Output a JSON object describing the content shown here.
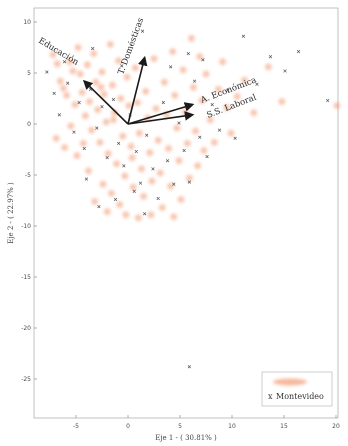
{
  "chart_data": {
    "type": "scatter",
    "xlabel": "Eje 1 - ( 30.81% )",
    "ylabel": "Eje 2 - ( 22.97% )",
    "xlim": [
      -10,
      20
    ],
    "ylim": [
      -30,
      10
    ],
    "xticks": [
      -5,
      0,
      5,
      10,
      15,
      20
    ],
    "yticks": [
      10,
      5,
      0,
      -5,
      -10,
      -15,
      -20,
      -25
    ],
    "grid": false,
    "legend_position": "bottom-right",
    "legend": [
      {
        "label": "",
        "marker": "blurred-circle",
        "color": "#f08a5d"
      },
      {
        "label": "Montevideo",
        "marker": "x",
        "color": "#555555"
      }
    ],
    "loadings": [
      {
        "label": "Educación",
        "x": -4.2,
        "y": 4.2
      },
      {
        "label": "T. Domésticas",
        "x": 1.6,
        "y": 6.5
      },
      {
        "label": "A. Económica",
        "x": 6.2,
        "y": 1.9
      },
      {
        "label": "S.S. Laboral",
        "x": 6.2,
        "y": 0.9
      }
    ],
    "series": [
      {
        "name": "",
        "marker": "circle",
        "color": "#f08a5d",
        "points": [
          [
            -7.2,
            6.8
          ],
          [
            -6.8,
            5.9
          ],
          [
            -6.5,
            4.2
          ],
          [
            -6.2,
            3.5
          ],
          [
            -5.9,
            2.8
          ],
          [
            -5.6,
            6.1
          ],
          [
            -5.3,
            5.2
          ],
          [
            -5.1,
            1.9
          ],
          [
            -4.8,
            7.5
          ],
          [
            -4.6,
            4.9
          ],
          [
            -4.4,
            3.1
          ],
          [
            -4.1,
            0.8
          ],
          [
            -3.9,
            5.8
          ],
          [
            -3.7,
            2.2
          ],
          [
            -3.5,
            -0.6
          ],
          [
            -3.3,
            6.9
          ],
          [
            -3.1,
            4.1
          ],
          [
            -2.9,
            1.4
          ],
          [
            -2.7,
            -1.8
          ],
          [
            -2.5,
            5.1
          ],
          [
            -2.3,
            2.9
          ],
          [
            -2.1,
            0.2
          ],
          [
            -1.9,
            -2.9
          ],
          [
            -1.7,
            7.8
          ],
          [
            -1.5,
            3.8
          ],
          [
            -1.3,
            1.1
          ],
          [
            -1.1,
            -3.9
          ],
          [
            -0.9,
            6.2
          ],
          [
            -0.7,
            2.5
          ],
          [
            -0.5,
            -1.2
          ],
          [
            -0.3,
            -5.1
          ],
          [
            -0.1,
            4.6
          ],
          [
            0.1,
            1.8
          ],
          [
            0.3,
            -2.2
          ],
          [
            0.5,
            -6.2
          ],
          [
            0.7,
            5.5
          ],
          [
            0.9,
            2.1
          ],
          [
            1.1,
            -0.9
          ],
          [
            1.3,
            -4.4
          ],
          [
            1.5,
            -7.1
          ],
          [
            1.7,
            3.2
          ],
          [
            1.9,
            0.6
          ],
          [
            2.1,
            -2.8
          ],
          [
            2.3,
            -5.6
          ],
          [
            2.5,
            6.4
          ],
          [
            2.7,
            1.5
          ],
          [
            2.9,
            -1.6
          ],
          [
            3.1,
            -4.8
          ],
          [
            3.3,
            -8.2
          ],
          [
            3.5,
            4.1
          ],
          [
            3.7,
            0.9
          ],
          [
            3.9,
            -2.4
          ],
          [
            4.1,
            -6.1
          ],
          [
            4.3,
            7.1
          ],
          [
            4.5,
            2.8
          ],
          [
            4.7,
            -0.4
          ],
          [
            4.9,
            -3.6
          ],
          [
            5.1,
            -7.4
          ],
          [
            5.3,
            5.3
          ],
          [
            5.5,
            1.2
          ],
          [
            5.7,
            -1.9
          ],
          [
            5.9,
            -5.3
          ],
          [
            6.1,
            8.4
          ],
          [
            6.3,
            3.6
          ],
          [
            6.5,
            -0.7
          ],
          [
            6.7,
            -4.1
          ],
          [
            6.9,
            6.6
          ],
          [
            7.1,
            2.3
          ],
          [
            7.3,
            -2.6
          ],
          [
            7.5,
            4.9
          ],
          [
            7.9,
            0.4
          ],
          [
            8.3,
            -1.8
          ],
          [
            8.7,
            3.4
          ],
          [
            9.1,
            6.1
          ],
          [
            9.5,
            1.6
          ],
          [
            9.9,
            -0.9
          ],
          [
            10.5,
            2.7
          ],
          [
            11.2,
            4.3
          ],
          [
            12.1,
            1.1
          ],
          [
            13.5,
            5.6
          ],
          [
            14.8,
            2.2
          ],
          [
            20.1,
            1.8
          ],
          [
            -6.9,
            -1.4
          ],
          [
            -6.1,
            -2.3
          ],
          [
            -5.5,
            -0.2
          ],
          [
            -4.9,
            -3.1
          ],
          [
            -4.3,
            -1.9
          ],
          [
            -3.8,
            -4.6
          ],
          [
            -2.4,
            -5.9
          ],
          [
            -1.6,
            -6.8
          ],
          [
            -0.8,
            -7.9
          ],
          [
            -0.2,
            -8.9
          ],
          [
            -3.2,
            -7.6
          ],
          [
            -2.0,
            -8.6
          ],
          [
            1.0,
            -9.2
          ],
          [
            2.2,
            -8.9
          ],
          [
            4.4,
            -9.1
          ],
          [
            0.4,
            -3.3
          ],
          [
            -1.4,
            0.4
          ],
          [
            -2.6,
            3.6
          ]
        ]
      },
      {
        "name": "Montevideo",
        "marker": "x",
        "color": "#555555",
        "points": [
          [
            -7.8,
            5.1
          ],
          [
            -7.1,
            3.0
          ],
          [
            -6.6,
            0.9
          ],
          [
            -5.8,
            4.0
          ],
          [
            -5.2,
            -0.8
          ],
          [
            -4.7,
            2.1
          ],
          [
            -4.2,
            -2.4
          ],
          [
            -3.6,
            3.4
          ],
          [
            -3.0,
            -0.4
          ],
          [
            -2.5,
            1.7
          ],
          [
            -2.0,
            -3.3
          ],
          [
            -1.4,
            2.4
          ],
          [
            -0.9,
            -1.9
          ],
          [
            -0.4,
            -4.1
          ],
          [
            0.2,
            0.9
          ],
          [
            0.8,
            -2.7
          ],
          [
            1.2,
            -5.8
          ],
          [
            1.8,
            -1.1
          ],
          [
            2.4,
            -4.4
          ],
          [
            2.9,
            -7.3
          ],
          [
            3.4,
            2.1
          ],
          [
            3.8,
            -3.6
          ],
          [
            4.4,
            -5.9
          ],
          [
            4.9,
            0.1
          ],
          [
            5.4,
            -2.6
          ],
          [
            5.9,
            -5.7
          ],
          [
            6.4,
            4.2
          ],
          [
            6.9,
            -1.3
          ],
          [
            7.6,
            -3.2
          ],
          [
            8.1,
            1.9
          ],
          [
            8.8,
            -0.6
          ],
          [
            9.6,
            3.3
          ],
          [
            10.3,
            -1.4
          ],
          [
            11.1,
            8.6
          ],
          [
            12.4,
            3.9
          ],
          [
            13.7,
            6.6
          ],
          [
            15.1,
            5.2
          ],
          [
            16.4,
            7.1
          ],
          [
            19.2,
            2.3
          ],
          [
            -4.0,
            -5.4
          ],
          [
            -2.8,
            -8.1
          ],
          [
            -1.2,
            -7.4
          ],
          [
            0.6,
            -6.6
          ],
          [
            1.6,
            -8.8
          ],
          [
            -6.1,
            6.1
          ],
          [
            -3.4,
            7.4
          ],
          [
            5.8,
            6.9
          ],
          [
            4.1,
            5.6
          ],
          [
            7.2,
            6.3
          ],
          [
            1.4,
            9.1
          ],
          [
            5.9,
            -23.8
          ],
          [
            -0.6,
            5.7
          ]
        ]
      }
    ]
  }
}
